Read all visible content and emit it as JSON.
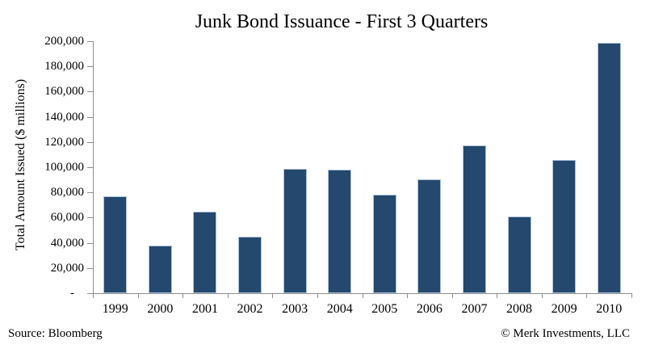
{
  "footer": {
    "source": "Source: Bloomberg",
    "copyright": "© Merk Investments, LLC"
  },
  "chart_data": {
    "type": "bar",
    "title": "Junk Bond Issuance - First 3 Quarters",
    "categories": [
      "1999",
      "2000",
      "2001",
      "2002",
      "2003",
      "2004",
      "2005",
      "2006",
      "2007",
      "2008",
      "2009",
      "2010"
    ],
    "values": [
      77000,
      38000,
      64500,
      45000,
      98500,
      98000,
      78000,
      90500,
      117000,
      61000,
      105500,
      198500
    ],
    "xlabel": "",
    "ylabel": "Total Amount Issued ($ millions)",
    "ylim": [
      0,
      200000
    ],
    "ytick_step": 20000,
    "zero_tick_label": "-",
    "grid": false,
    "legend": false,
    "bar_color": "#24486E",
    "bar_border_color": "#AEC3DC",
    "axis_color": "#8E8E8E",
    "text_color": "#000000"
  }
}
